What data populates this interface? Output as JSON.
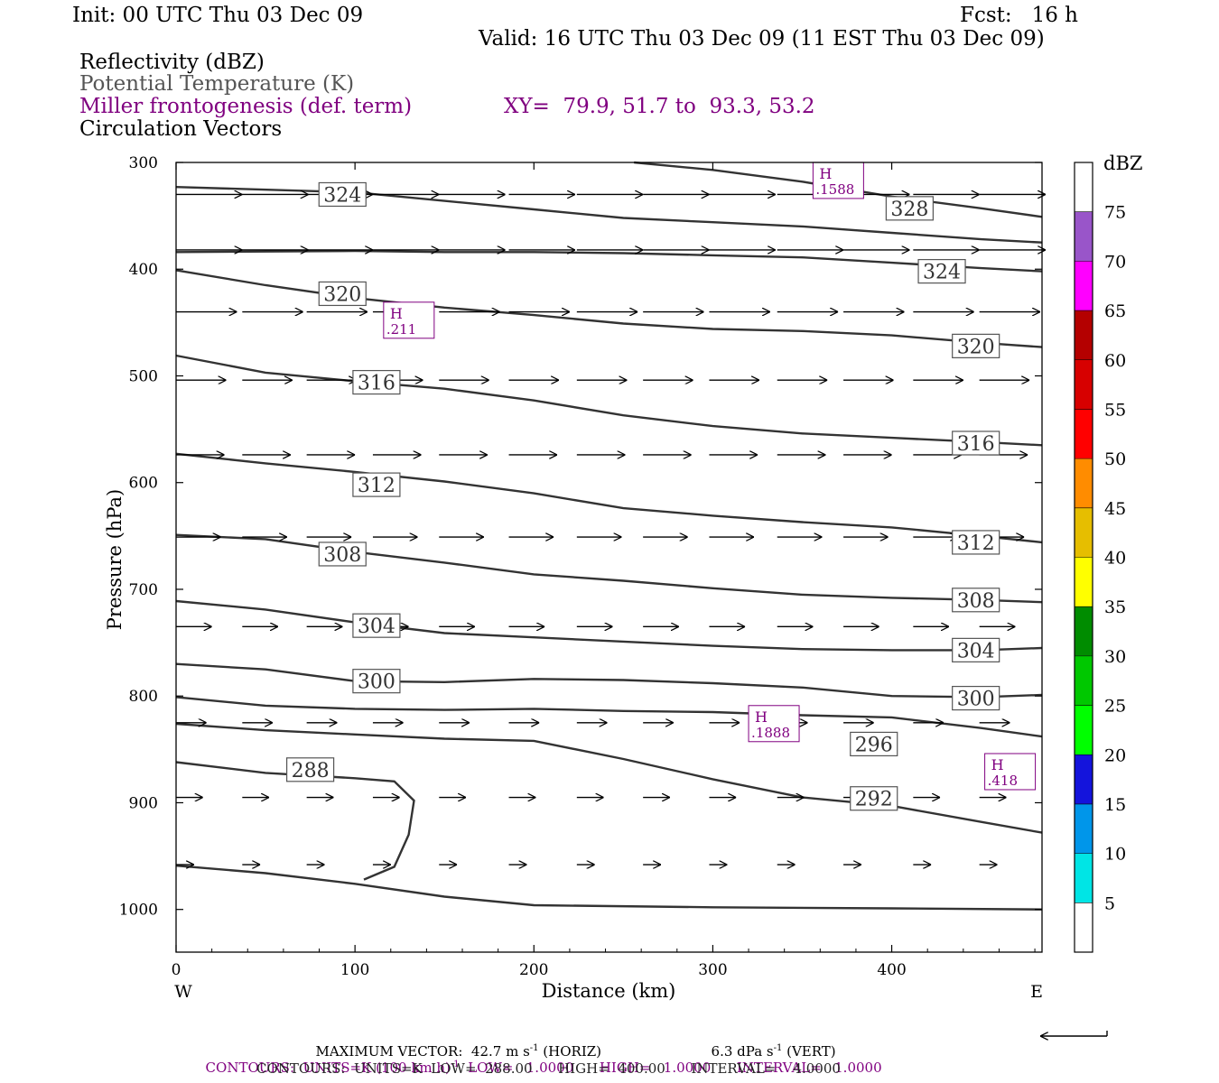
{
  "header": {
    "init": "Init: 00 UTC Thu 03 Dec 09",
    "fcst": "Fcst:   16 h",
    "valid": "Valid: 16 UTC Thu 03 Dec 09 (11 EST Thu 03 Dec 09)",
    "field1": "Reflectivity (dBZ)",
    "field2": "Potential Temperature (K)",
    "field3": "Miller frontogenesis (def. term)",
    "xy": "XY=  79.9, 51.7 to  93.3, 53.2",
    "field4": "Circulation Vectors"
  },
  "colors": {
    "purple": "#800080",
    "theta": "#333333",
    "vectors": "#000000"
  },
  "footer": {
    "maxvec_a": "MAXIMUM VECTOR:  42.7 m s",
    "maxvec_b": " (HORIZ)",
    "maxvec_c": "6.3 dPa s",
    "maxvec_d": " (VERT)",
    "exp": "-1",
    "contours1_a": "CONTOURS:  UNITS=K (100 km h)",
    "contours1_b": "  LOW=   1.0000      HIGH=   1.0000      INTERVAL=   1.0000",
    "contours2": "CONTOURS:  UNITS=K  LOW=  288.00      HIGH=  400.00      INTERVAL=    4.0000"
  },
  "chart_data": {
    "type": "cross-section",
    "xlabel": "Distance (km)",
    "ylabel": "Pressure (hPa)",
    "xlim": [
      0,
      484
    ],
    "ylim": [
      1040,
      300
    ],
    "xticks": [
      0,
      100,
      200,
      300,
      400
    ],
    "yticks": [
      300,
      400,
      500,
      600,
      700,
      800,
      900,
      1000
    ],
    "x_end_labels": [
      "W",
      "E"
    ],
    "colorbar": {
      "title": "dBZ",
      "labels": [
        "5",
        "10",
        "15",
        "20",
        "25",
        "30",
        "35",
        "40",
        "45",
        "50",
        "55",
        "60",
        "65",
        "70",
        "75"
      ],
      "colors": [
        "#ffffff",
        "#00e5e5",
        "#0096ea",
        "#1414dc",
        "#00ff00",
        "#00c800",
        "#008c00",
        "#ffff00",
        "#e6be00",
        "#ff8c00",
        "#ff0000",
        "#d70000",
        "#b40000",
        "#ff00ff",
        "#9955c9",
        "#ffffff"
      ]
    },
    "theta_contours": [
      {
        "label": "324",
        "points": [
          [
            0,
            323
          ],
          [
            100,
            328
          ],
          [
            150,
            336
          ],
          [
            200,
            344
          ],
          [
            250,
            352
          ],
          [
            300,
            356
          ],
          [
            350,
            360
          ],
          [
            400,
            366
          ],
          [
            450,
            372
          ],
          [
            484,
            375
          ]
        ],
        "labels": [
          [
            93,
            330
          ]
        ]
      },
      {
        "label": "328",
        "points": [
          [
            256,
            300
          ],
          [
            300,
            307
          ],
          [
            350,
            318
          ],
          [
            400,
            332
          ],
          [
            450,
            343
          ],
          [
            484,
            351
          ]
        ],
        "labels": [
          [
            410,
            343
          ]
        ]
      },
      {
        "label": "324",
        "points": [
          [
            0,
            384
          ],
          [
            100,
            383
          ],
          [
            150,
            384
          ],
          [
            200,
            384
          ],
          [
            250,
            385
          ],
          [
            300,
            387
          ],
          [
            350,
            389
          ],
          [
            400,
            394
          ],
          [
            450,
            399
          ],
          [
            484,
            402
          ]
        ],
        "labels": [
          [
            428,
            402
          ]
        ]
      },
      {
        "label": "320",
        "points": [
          [
            0,
            401
          ],
          [
            50,
            415
          ],
          [
            100,
            427
          ],
          [
            150,
            436
          ],
          [
            200,
            443
          ],
          [
            250,
            451
          ],
          [
            300,
            456
          ],
          [
            350,
            458
          ],
          [
            400,
            462
          ],
          [
            450,
            469
          ],
          [
            484,
            473
          ]
        ],
        "labels": [
          [
            93,
            423
          ],
          [
            447,
            472
          ]
        ]
      },
      {
        "label": "316",
        "points": [
          [
            0,
            481
          ],
          [
            50,
            497
          ],
          [
            100,
            505
          ],
          [
            150,
            512
          ],
          [
            200,
            523
          ],
          [
            250,
            537
          ],
          [
            300,
            547
          ],
          [
            350,
            554
          ],
          [
            400,
            558
          ],
          [
            450,
            562
          ],
          [
            484,
            565
          ]
        ],
        "labels": [
          [
            112,
            506
          ],
          [
            447,
            563
          ]
        ]
      },
      {
        "label": "312",
        "points": [
          [
            0,
            573
          ],
          [
            50,
            582
          ],
          [
            100,
            590
          ],
          [
            150,
            599
          ],
          [
            200,
            610
          ],
          [
            250,
            624
          ],
          [
            300,
            631
          ],
          [
            350,
            637
          ],
          [
            400,
            642
          ],
          [
            450,
            650
          ],
          [
            484,
            656
          ]
        ],
        "labels": [
          [
            112,
            602
          ],
          [
            447,
            656
          ]
        ]
      },
      {
        "label": "308",
        "points": [
          [
            0,
            649
          ],
          [
            50,
            653
          ],
          [
            100,
            665
          ],
          [
            150,
            675
          ],
          [
            200,
            686
          ],
          [
            250,
            692
          ],
          [
            300,
            699
          ],
          [
            350,
            705
          ],
          [
            400,
            708
          ],
          [
            450,
            710
          ],
          [
            484,
            712
          ]
        ],
        "labels": [
          [
            93,
            667
          ],
          [
            447,
            710
          ]
        ]
      },
      {
        "label": "304",
        "points": [
          [
            0,
            711
          ],
          [
            50,
            719
          ],
          [
            100,
            731
          ],
          [
            150,
            741
          ],
          [
            200,
            745
          ],
          [
            250,
            749
          ],
          [
            300,
            753
          ],
          [
            350,
            756
          ],
          [
            400,
            757
          ],
          [
            450,
            757
          ],
          [
            484,
            755
          ]
        ],
        "labels": [
          [
            112,
            734
          ],
          [
            447,
            757
          ]
        ]
      },
      {
        "label": "300",
        "points": [
          [
            0,
            770
          ],
          [
            50,
            775
          ],
          [
            100,
            786
          ],
          [
            150,
            787
          ],
          [
            200,
            784
          ],
          [
            250,
            785
          ],
          [
            300,
            788
          ],
          [
            350,
            792
          ],
          [
            400,
            800
          ],
          [
            450,
            801
          ],
          [
            484,
            799
          ]
        ],
        "labels": [
          [
            112,
            786
          ],
          [
            447,
            802
          ]
        ]
      },
      {
        "label": "296",
        "points": [
          [
            0,
            801
          ],
          [
            50,
            809
          ],
          [
            100,
            812
          ],
          [
            150,
            813
          ],
          [
            200,
            812
          ],
          [
            250,
            814
          ],
          [
            300,
            815
          ],
          [
            350,
            818
          ],
          [
            400,
            820
          ],
          [
            450,
            830
          ],
          [
            484,
            838
          ]
        ],
        "labels": [
          [
            390,
            845
          ]
        ]
      },
      {
        "label": "292",
        "points": [
          [
            0,
            826
          ],
          [
            50,
            832
          ],
          [
            100,
            836
          ],
          [
            150,
            840
          ],
          [
            200,
            842
          ],
          [
            250,
            859
          ],
          [
            300,
            878
          ],
          [
            350,
            895
          ],
          [
            400,
            903
          ],
          [
            450,
            918
          ],
          [
            484,
            928
          ]
        ],
        "labels": [
          [
            390,
            896
          ]
        ]
      },
      {
        "label": "288",
        "points": [
          [
            0,
            862
          ],
          [
            50,
            872
          ],
          [
            100,
            877
          ],
          [
            122,
            880
          ],
          [
            133,
            898
          ],
          [
            130,
            930
          ],
          [
            122,
            960
          ],
          [
            105,
            972
          ]
        ],
        "labels": [
          [
            75,
            869
          ]
        ]
      },
      {
        "label": "",
        "points": [
          [
            0,
            959
          ],
          [
            50,
            966
          ],
          [
            100,
            976
          ],
          [
            150,
            988
          ],
          [
            200,
            996
          ],
          [
            300,
            998
          ],
          [
            400,
            999
          ],
          [
            484,
            1000
          ]
        ],
        "labels": []
      }
    ],
    "vectors": [
      {
        "p": 330,
        "x": [
          0,
          37,
          73,
          110,
          147,
          186,
          224,
          261,
          298,
          336,
          373,
          412,
          449
        ],
        "dx": 37
      },
      {
        "p": 382,
        "x": [
          0,
          37,
          73,
          110,
          147,
          186,
          224,
          261,
          298,
          336,
          373,
          412,
          449
        ],
        "dx": 37
      },
      {
        "p": 440,
        "x": [
          0,
          37,
          73,
          110,
          147,
          186,
          224,
          261,
          298,
          336,
          373,
          412,
          449
        ],
        "dx": 34
      },
      {
        "p": 504,
        "x": [
          0,
          37,
          73,
          110,
          147,
          186,
          224,
          261,
          298,
          336,
          373,
          412,
          449
        ],
        "dx": 28
      },
      {
        "p": 574,
        "x": [
          0,
          37,
          73,
          110,
          147,
          186,
          224,
          261,
          298,
          336,
          373,
          412,
          449
        ],
        "dx": 27
      },
      {
        "p": 651,
        "x": [
          0,
          37,
          73,
          110,
          147,
          186,
          224,
          261,
          298,
          336,
          373,
          412,
          449
        ],
        "dx": 25
      },
      {
        "p": 735,
        "x": [
          0,
          37,
          73,
          110,
          147,
          186,
          224,
          261,
          298,
          336,
          373,
          412,
          449
        ],
        "dx": 20
      },
      {
        "p": 825,
        "x": [
          0,
          37,
          73,
          110,
          147,
          186,
          224,
          261,
          298,
          336,
          373,
          412,
          449
        ],
        "dx": 17
      },
      {
        "p": 895,
        "x": [
          0,
          37,
          73,
          110,
          147,
          186,
          224,
          261,
          298,
          336,
          373,
          412,
          449
        ],
        "dx": 15
      },
      {
        "p": 958,
        "x": [
          0,
          37,
          73,
          110,
          147,
          186,
          224,
          261,
          298,
          336,
          373,
          412,
          449
        ],
        "dx": 10
      }
    ],
    "maxima": [
      {
        "label": "H",
        "value": ".1588",
        "x": 356,
        "p": 316
      },
      {
        "label": "H",
        "value": ".211",
        "x": 116,
        "p": 447
      },
      {
        "label": "H",
        "value": ".1888",
        "x": 320,
        "p": 825
      },
      {
        "label": "H",
        "value": ".418",
        "x": 452,
        "p": 870
      }
    ]
  }
}
